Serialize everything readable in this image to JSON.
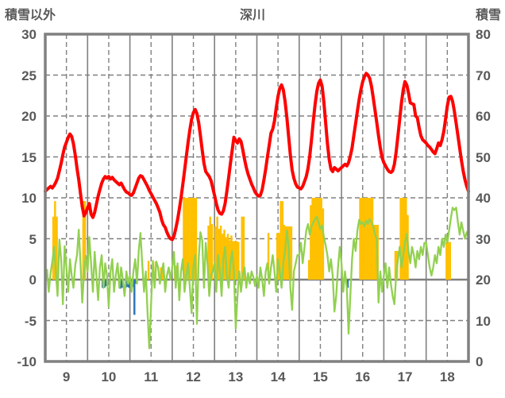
{
  "header": {
    "left_axis_title": "積雪以外",
    "title": "深川",
    "right_axis_title": "積雪"
  },
  "chart_data": {
    "type": "line+bar",
    "title": "深川",
    "left_axis": {
      "label": "積雪以外",
      "min": -10,
      "max": 30,
      "ticks": [
        30,
        25,
        20,
        15,
        10,
        5,
        0,
        -5,
        -10
      ]
    },
    "right_axis": {
      "label": "積雪",
      "min": 0,
      "max": 80,
      "ticks": [
        80,
        70,
        60,
        50,
        40,
        30,
        20,
        10,
        0
      ]
    },
    "x_days": [
      9,
      10,
      11,
      12,
      13,
      14,
      15,
      16,
      17,
      18
    ],
    "samples_per_day": 24,
    "grid": {
      "h_dashed_values": [
        25,
        20,
        15,
        10,
        5,
        -5
      ],
      "h_solid_values": [
        0
      ],
      "color": "#808080"
    },
    "colors": {
      "red_line": "#FF0000",
      "green_line": "#92D050",
      "orange_bar": "#FFC000",
      "blue_bar": "#2E75B6",
      "frame": "#808080",
      "text": "#595959"
    },
    "series": [
      {
        "name": "red-line",
        "type": "line",
        "axis": "left",
        "color": "#FF0000",
        "width": 4,
        "values": [
          10.8,
          11.0,
          11.2,
          11.4,
          11.2,
          11.5,
          11.9,
          12.4,
          13.3,
          14.2,
          15.3,
          16.2,
          16.8,
          17.4,
          17.8,
          17.5,
          16.6,
          15.2,
          13.6,
          12.2,
          10.5,
          8.9,
          7.8,
          8.2,
          8.8,
          9.3,
          8.0,
          7.6,
          8.2,
          9.2,
          10.2,
          11.0,
          11.8,
          12.3,
          12.6,
          12.4,
          12.6,
          12.3,
          12.5,
          12.2,
          12.0,
          11.8,
          11.6,
          11.8,
          11.4,
          11.0,
          10.7,
          10.6,
          10.4,
          10.3,
          10.6,
          11.2,
          11.8,
          12.4,
          12.7,
          12.6,
          12.2,
          11.8,
          11.4,
          10.9,
          10.5,
          10.1,
          9.7,
          9.3,
          8.8,
          8.2,
          7.3,
          6.7,
          6.4,
          5.8,
          5.3,
          5.0,
          4.9,
          5.3,
          6.2,
          7.3,
          8.6,
          10.0,
          11.6,
          13.3,
          15.1,
          16.8,
          18.3,
          19.6,
          20.4,
          20.8,
          20.3,
          19.2,
          17.6,
          15.8,
          14.2,
          13.2,
          12.9,
          12.6,
          12.1,
          11.2,
          10.3,
          9.3,
          8.5,
          8.1,
          8.0,
          8.4,
          9.3,
          10.8,
          12.5,
          14.2,
          15.8,
          17.4,
          17.0,
          16.7,
          17.2,
          16.9,
          15.9,
          14.7,
          13.7,
          12.9,
          12.3,
          11.7,
          11.2,
          10.7,
          10.4,
          10.2,
          10.3,
          11.0,
          12.2,
          13.5,
          15.0,
          16.4,
          17.9,
          18.4,
          19.4,
          21.0,
          22.4,
          23.4,
          23.8,
          23.2,
          21.8,
          19.8,
          17.5,
          15.2,
          13.4,
          12.4,
          11.7,
          11.3,
          11.2,
          11.1,
          11.4,
          12.0,
          12.6,
          13.6,
          15.1,
          17.1,
          19.4,
          21.4,
          23.0,
          24.0,
          24.4,
          23.6,
          21.7,
          19.2,
          16.7,
          14.7,
          13.5,
          13.2,
          13.7,
          13.5,
          13.3,
          13.5,
          13.7,
          13.9,
          14.1,
          13.9,
          14.3,
          15.1,
          16.1,
          17.6,
          19.1,
          20.6,
          22.0,
          23.2,
          24.2,
          24.8,
          25.2,
          25.0,
          24.6,
          23.6,
          22.2,
          20.7,
          19.2,
          17.6,
          16.1,
          14.9,
          14.3,
          13.9,
          13.5,
          13.2,
          13.1,
          13.3,
          14.1,
          15.6,
          17.6,
          19.6,
          21.6,
          23.2,
          24.2,
          23.8,
          22.8,
          21.6,
          21.5,
          21.4,
          20.0,
          19.8,
          18.6,
          17.6,
          17.1,
          16.9,
          16.7,
          16.4,
          16.2,
          15.9,
          15.6,
          15.4,
          16.0,
          16.7,
          16.4,
          17.1,
          18.1,
          19.6,
          21.2,
          22.3,
          22.4,
          21.8,
          20.6,
          19.1,
          17.6,
          16.1,
          14.6,
          13.3,
          12.2,
          11.4,
          10.8
        ]
      },
      {
        "name": "green-line",
        "type": "line",
        "axis": "left",
        "color": "#92D050",
        "width": 2.3,
        "values": [
          -0.5,
          1.2,
          -1.5,
          0.8,
          2.2,
          4.0,
          1.0,
          -2.0,
          4.9,
          2.5,
          -3.0,
          4.1,
          1.5,
          -1.5,
          2.5,
          0.5,
          -1.0,
          1.8,
          3.0,
          6.1,
          2.0,
          -2.8,
          1.0,
          2.9,
          1.0,
          5.2,
          2.0,
          -1.5,
          3.4,
          0.5,
          -2.5,
          1.5,
          3.0,
          -1.0,
          2.0,
          0.5,
          -3.3,
          1.0,
          2.5,
          -1.5,
          0.5,
          2.0,
          -1.0,
          1.5,
          0.0,
          -2.0,
          1.0,
          -0.5,
          0.5,
          -1.5,
          1.0,
          2.5,
          -0.5,
          3.5,
          5.7,
          2.0,
          -1.5,
          1.0,
          -4.0,
          -8.4,
          -3.0,
          2.3,
          -1.0,
          2.2,
          1.5,
          -0.5,
          1.0,
          2.0,
          -1.5,
          0.5,
          1.5,
          0.0,
          1.5,
          3.4,
          -1.0,
          2.0,
          -2.5,
          1.0,
          2.5,
          -1.5,
          0.5,
          2.0,
          -1.0,
          -4.1,
          1.5,
          3.0,
          -5.4,
          2.5,
          5.8,
          4.8,
          -1.0,
          4.5,
          2.0,
          -2.0,
          0.5,
          1.0,
          2.0,
          -1.5,
          3.0,
          1.0,
          -2.0,
          2.5,
          4.0,
          0.5,
          -1.0,
          2.0,
          3.5,
          1.0,
          -6.0,
          -2.0,
          1.0,
          -1.5,
          0.5,
          1.5,
          -1.0,
          0.8,
          -0.5,
          1.0,
          0.3,
          -0.8,
          0.5,
          -1.0,
          1.5,
          0.0,
          -2.0,
          1.0,
          2.0,
          -0.5,
          1.5,
          3.0,
          1.0,
          -1.5,
          2.5,
          1.0,
          -1.0,
          2.0,
          3.5,
          6.0,
          4.0,
          -1.0,
          -3.7,
          1.0,
          2.0,
          3.0,
          3.0,
          4.5,
          2.0,
          4.0,
          6.0,
          6.8,
          5.5,
          6.5,
          7.0,
          7.4,
          7.7,
          7.0,
          6.2,
          6.6,
          5.2,
          4.2,
          3.0,
          1.0,
          2.5,
          0.5,
          -3.9,
          -2.0,
          1.5,
          4.0,
          2.0,
          -1.5,
          1.0,
          -1.0,
          -6.6,
          -2.0,
          2.5,
          5.0,
          3.5,
          6.0,
          7.3,
          6.8,
          7.0,
          6.5,
          7.2,
          6.8,
          7.4,
          7.0,
          6.5,
          5.5,
          5.0,
          -2.8,
          1.0,
          -1.5,
          0.5,
          2.0,
          -1.0,
          1.5,
          -0.5,
          -2.0,
          -3.0,
          0.5,
          2.5,
          4.0,
          1.5,
          3.0,
          4.5,
          5.6,
          3.5,
          2.0,
          4.0,
          3.0,
          1.5,
          3.5,
          2.5,
          4.0,
          3.0,
          4.5,
          4.5,
          3.0,
          1.5,
          0.5,
          1.5,
          3.0,
          2.0,
          4.0,
          3.0,
          5.0,
          4.0,
          5.5,
          4.5,
          6.0,
          7.5,
          8.8,
          8.5,
          8.8,
          7.0,
          5.5,
          7.0,
          6.0,
          5.0,
          5.8,
          5.3
        ]
      },
      {
        "name": "orange-bars",
        "type": "bar",
        "axis": "left",
        "color": "#FFC000",
        "values": [
          0,
          0,
          0,
          0,
          7.7,
          9.6,
          7.7,
          0,
          0,
          0,
          0,
          0,
          0,
          0,
          0,
          0,
          0,
          0,
          0,
          0,
          0,
          9.6,
          9.6,
          0,
          0,
          0,
          0,
          0,
          0,
          0,
          0,
          0,
          0,
          0,
          0,
          0,
          0,
          0,
          0,
          0,
          0,
          0,
          0,
          0,
          0,
          0,
          0,
          0,
          0,
          0,
          0,
          0,
          0,
          0,
          0,
          0,
          0,
          0,
          2.3,
          0,
          0,
          0,
          2.2,
          0,
          0,
          1.5,
          1.5,
          0,
          0,
          0,
          0,
          0,
          0,
          1.7,
          1.7,
          0,
          0,
          0,
          10,
          10,
          10,
          10,
          10,
          10,
          10,
          10,
          0,
          0,
          0,
          0,
          0,
          0,
          6.6,
          7.7,
          6.8,
          0,
          6.5,
          7.7,
          6.2,
          6.6,
          5.6,
          6.1,
          5.2,
          5.6,
          4.8,
          5.4,
          4.7,
          4.7,
          4.7,
          4.6,
          0,
          7.7,
          7.7,
          0,
          0,
          0,
          0,
          0,
          0,
          0,
          0,
          0,
          0,
          0,
          0,
          0,
          5.7,
          0,
          0,
          0,
          0,
          5.7,
          5.7,
          9.6,
          9.6,
          6.7,
          6.5,
          6.5,
          6.5,
          6.5,
          0,
          0,
          0,
          0,
          0,
          0,
          0,
          0,
          0,
          2.4,
          9.1,
          10,
          10,
          10,
          10,
          10,
          10,
          8.7,
          0,
          0,
          0,
          0,
          0,
          0,
          0,
          0,
          0,
          0,
          0,
          0,
          0,
          0,
          0,
          0,
          0,
          0,
          0,
          0,
          10,
          10,
          10,
          10,
          10,
          10,
          10,
          10,
          6.7,
          6.7,
          6.7,
          0,
          0,
          0,
          0,
          0,
          0,
          0,
          0,
          0,
          3.5,
          3.5,
          0,
          10,
          10,
          10,
          10,
          7.9,
          0,
          0,
          0,
          0,
          0,
          0,
          0,
          0,
          0,
          0,
          0,
          0,
          0,
          0,
          0,
          0,
          0,
          0,
          0,
          0,
          0,
          4.6,
          4.6,
          4.6,
          0,
          0,
          0,
          0,
          0,
          0,
          0,
          0,
          0,
          0
        ]
      },
      {
        "name": "blue-bars",
        "type": "bar",
        "axis": "left",
        "color": "#2E75B6",
        "values": [
          0,
          0,
          0,
          0,
          0,
          0,
          0,
          0,
          0,
          0,
          0,
          0,
          0,
          0,
          0,
          0,
          0,
          0,
          0,
          0,
          0,
          0,
          0,
          0,
          0,
          0,
          0,
          0,
          0,
          0,
          0,
          0,
          -1.0,
          -1.0,
          -0.8,
          0,
          0,
          0,
          0,
          0,
          0,
          0,
          -1.1,
          -1.0,
          0,
          -1.0,
          -0.9,
          -1.0,
          -0.9,
          -0.9,
          -4.3,
          -0.5,
          0,
          0,
          0,
          0,
          0,
          0,
          0,
          0,
          0,
          0,
          0,
          0,
          0,
          0,
          0,
          0,
          0,
          0,
          0,
          0,
          0,
          0,
          0,
          0,
          0,
          0,
          0,
          0,
          0,
          0,
          0,
          0,
          0,
          0,
          0,
          0,
          0,
          0,
          0,
          0,
          0,
          0,
          0,
          0,
          0,
          0,
          0,
          0,
          0,
          0,
          0,
          0,
          0,
          0,
          0,
          0,
          0,
          0,
          0,
          0,
          0,
          0,
          0,
          0,
          0,
          0,
          0,
          0,
          0,
          0,
          0,
          0,
          0,
          0,
          0,
          0,
          0,
          0,
          0,
          0,
          0,
          0,
          0,
          0,
          0,
          0,
          0,
          0,
          0,
          0,
          0,
          0,
          0,
          0,
          0,
          0,
          0,
          0,
          0,
          0,
          0,
          0,
          0,
          0,
          0,
          0,
          0,
          0,
          0,
          0,
          0,
          0,
          0,
          0,
          0,
          0,
          0,
          0,
          0,
          -1.0,
          0,
          0,
          0,
          0,
          0,
          0,
          0,
          0,
          0,
          0,
          0,
          0,
          0,
          0,
          0,
          0,
          0,
          0,
          0,
          0,
          0,
          0,
          0,
          0,
          0,
          0,
          0,
          0,
          0,
          0,
          0,
          0,
          0,
          0,
          0,
          0,
          0,
          0,
          0,
          0,
          0,
          0,
          0,
          0,
          0,
          0,
          0,
          0,
          0,
          0,
          0,
          0,
          0,
          0,
          0,
          0,
          0,
          0,
          0,
          0,
          0,
          0,
          0,
          0,
          0,
          0,
          0,
          0
        ]
      }
    ]
  }
}
